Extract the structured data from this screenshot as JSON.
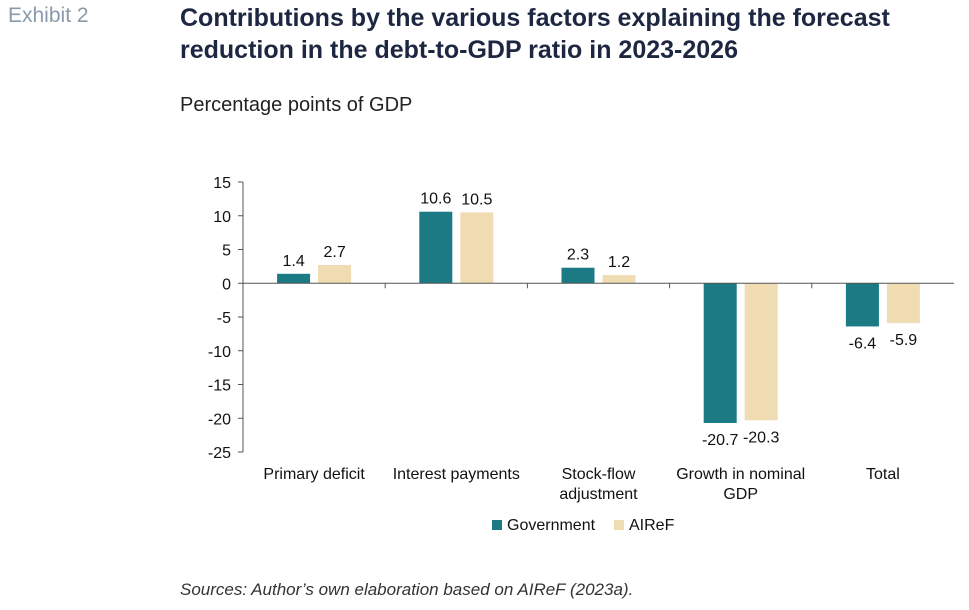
{
  "header": {
    "exhibit": "Exhibit 2",
    "title": "Contributions by the various factors explaining the forecast reduction in the debt-to-GDP ratio in 2023-2026",
    "subtitle": "Percentage points of GDP"
  },
  "footer": {
    "source": "Sources: Author’s own elaboration based on AIReF (2023a)."
  },
  "chart_data": {
    "type": "bar",
    "categories": [
      [
        "Primary deficit"
      ],
      [
        "Interest payments"
      ],
      [
        "Stock-flow",
        "adjustment"
      ],
      [
        "Growth in nominal",
        "GDP"
      ],
      [
        "Total"
      ]
    ],
    "series": [
      {
        "name": "Government",
        "color": "#1b7a84",
        "values": [
          1.4,
          10.6,
          2.3,
          -20.7,
          -6.4
        ],
        "labels": [
          "1.4",
          "10.6",
          "2.3",
          "-20.7",
          "-6.4"
        ]
      },
      {
        "name": "AIReF",
        "color": "#f0dcb2",
        "values": [
          2.7,
          10.5,
          1.2,
          -20.3,
          -5.9
        ],
        "labels": [
          "2.7",
          "10.5",
          "1.2",
          "-20.3",
          "-5.9"
        ]
      }
    ],
    "ylim": [
      -25,
      15
    ],
    "yticks": [
      15,
      10,
      5,
      0,
      -5,
      -10,
      -15,
      -20,
      -25
    ],
    "legend_position": "bottom-center"
  }
}
